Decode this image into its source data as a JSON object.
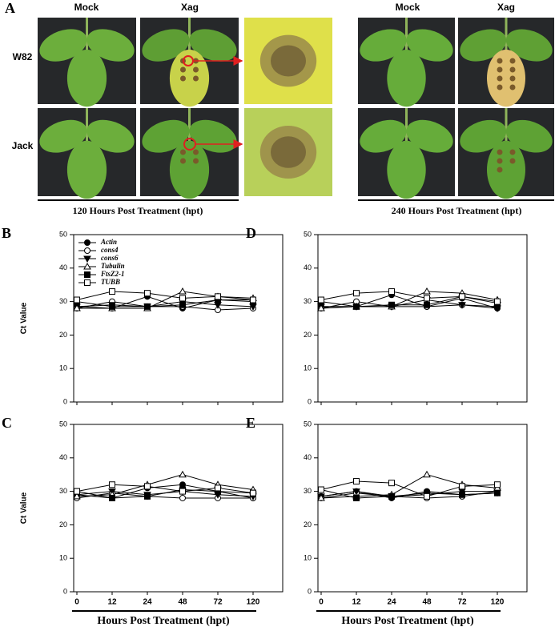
{
  "panel_a": {
    "panel_label": "A",
    "column_headers": [
      "Mock",
      "Xag",
      "Mock",
      "Xag"
    ],
    "row_labels": [
      "W82",
      "Jack"
    ],
    "time_labels": [
      "120 Hours Post Treatment (hpt)",
      "240 Hours Post Treatment (hpt)"
    ]
  },
  "chart_data": [
    {
      "type": "line",
      "panel_label": "B",
      "ylabel": "Ct Value",
      "categories": [
        "0",
        "12",
        "24",
        "48",
        "72",
        "120"
      ],
      "xtick_labels": false,
      "ylim": [
        0,
        50
      ],
      "yticks": [
        0,
        10,
        20,
        30,
        40,
        50
      ],
      "legend": "upper left",
      "series": [
        {
          "name": "Actin",
          "color": "#000000",
          "marker": "filled-circle",
          "values": [
            28.5,
            28,
            31.5,
            28,
            30.5,
            30.5
          ]
        },
        {
          "name": "cons4",
          "color": "#000000",
          "marker": "open-circle",
          "values": [
            28,
            30,
            28.5,
            28.5,
            27.5,
            28
          ]
        },
        {
          "name": "cons6",
          "color": "#000000",
          "marker": "filled-triangle-down",
          "values": [
            28.5,
            29,
            28.5,
            30,
            29,
            28.5
          ]
        },
        {
          "name": "Tubulin",
          "color": "#000000",
          "marker": "open-triangle-up",
          "values": [
            28,
            28,
            28,
            33,
            31.5,
            31
          ]
        },
        {
          "name": "FtsZ2-1",
          "color": "#000000",
          "marker": "filled-square",
          "values": [
            30,
            28.5,
            28.5,
            29,
            30.5,
            30
          ]
        },
        {
          "name": "TUBB",
          "color": "#000000",
          "marker": "open-square",
          "values": [
            30.5,
            33,
            32.5,
            31,
            31.5,
            30.5
          ]
        }
      ]
    },
    {
      "type": "line",
      "panel_label": "C",
      "ylabel": "Ct Value",
      "xlabel": "Hours Post Treatment (hpt)",
      "categories": [
        "0",
        "12",
        "24",
        "48",
        "72",
        "120"
      ],
      "xtick_labels": true,
      "ylim": [
        0,
        50
      ],
      "yticks": [
        0,
        10,
        20,
        30,
        40,
        50
      ],
      "legend": false,
      "series": [
        {
          "name": "Actin",
          "color": "#000000",
          "marker": "filled-circle",
          "values": [
            29,
            28,
            31,
            32,
            30,
            28
          ]
        },
        {
          "name": "cons4",
          "color": "#000000",
          "marker": "open-circle",
          "values": [
            28,
            29.5,
            28.5,
            28,
            28,
            28
          ]
        },
        {
          "name": "cons6",
          "color": "#000000",
          "marker": "filled-triangle-down",
          "values": [
            29,
            30,
            29,
            30,
            29,
            28.5
          ]
        },
        {
          "name": "Tubulin",
          "color": "#000000",
          "marker": "open-triangle-up",
          "values": [
            28.5,
            29,
            32,
            35,
            32,
            30.5
          ]
        },
        {
          "name": "FtsZ2-1",
          "color": "#000000",
          "marker": "filled-square",
          "values": [
            30,
            28,
            28.5,
            30.5,
            30,
            29.5
          ]
        },
        {
          "name": "TUBB",
          "color": "#000000",
          "marker": "open-square",
          "values": [
            30,
            32,
            31.5,
            30,
            31,
            29.5
          ]
        }
      ]
    },
    {
      "type": "line",
      "panel_label": "D",
      "categories": [
        "0",
        "12",
        "24",
        "48",
        "72",
        "120"
      ],
      "xtick_labels": false,
      "ylim": [
        0,
        50
      ],
      "yticks": [
        0,
        10,
        20,
        30,
        40,
        50
      ],
      "legend": false,
      "series": [
        {
          "name": "Actin",
          "color": "#000000",
          "marker": "filled-circle",
          "values": [
            28.5,
            28.5,
            32,
            28.5,
            31,
            28
          ]
        },
        {
          "name": "cons4",
          "color": "#000000",
          "marker": "open-circle",
          "values": [
            28,
            30,
            28.5,
            28.5,
            29,
            28.5
          ]
        },
        {
          "name": "cons6",
          "color": "#000000",
          "marker": "filled-triangle-down",
          "values": [
            28.5,
            28.5,
            28.5,
            30.5,
            29,
            28
          ]
        },
        {
          "name": "Tubulin",
          "color": "#000000",
          "marker": "open-triangle-up",
          "values": [
            28,
            28.5,
            28.5,
            33,
            32.5,
            30.5
          ]
        },
        {
          "name": "FtsZ2-1",
          "color": "#000000",
          "marker": "filled-square",
          "values": [
            30,
            28.5,
            29,
            29,
            31.5,
            29.5
          ]
        },
        {
          "name": "TUBB",
          "color": "#000000",
          "marker": "open-square",
          "values": [
            30.5,
            32.5,
            33,
            31,
            31.5,
            30
          ]
        }
      ]
    },
    {
      "type": "line",
      "panel_label": "E",
      "xlabel": "Hours Post Treatment (hpt)",
      "categories": [
        "0",
        "12",
        "24",
        "48",
        "72",
        "120"
      ],
      "xtick_labels": true,
      "ylim": [
        0,
        50
      ],
      "yticks": [
        0,
        10,
        20,
        30,
        40,
        50
      ],
      "legend": false,
      "series": [
        {
          "name": "Actin",
          "color": "#000000",
          "marker": "filled-circle",
          "values": [
            28.5,
            30,
            28,
            30,
            29,
            29.5
          ]
        },
        {
          "name": "cons4",
          "color": "#000000",
          "marker": "open-circle",
          "values": [
            28,
            29.5,
            28.5,
            28,
            28.5,
            30
          ]
        },
        {
          "name": "cons6",
          "color": "#000000",
          "marker": "filled-triangle-down",
          "values": [
            28.5,
            30,
            28.5,
            29,
            30,
            30
          ]
        },
        {
          "name": "Tubulin",
          "color": "#000000",
          "marker": "open-triangle-up",
          "values": [
            28,
            28.5,
            29,
            35,
            32,
            31
          ]
        },
        {
          "name": "FtsZ2-1",
          "color": "#000000",
          "marker": "filled-square",
          "values": [
            30.5,
            28,
            28.5,
            29.5,
            29,
            29.5
          ]
        },
        {
          "name": "TUBB",
          "color": "#000000",
          "marker": "open-square",
          "values": [
            30.5,
            33,
            32.5,
            28.5,
            31.5,
            32
          ]
        }
      ]
    }
  ]
}
